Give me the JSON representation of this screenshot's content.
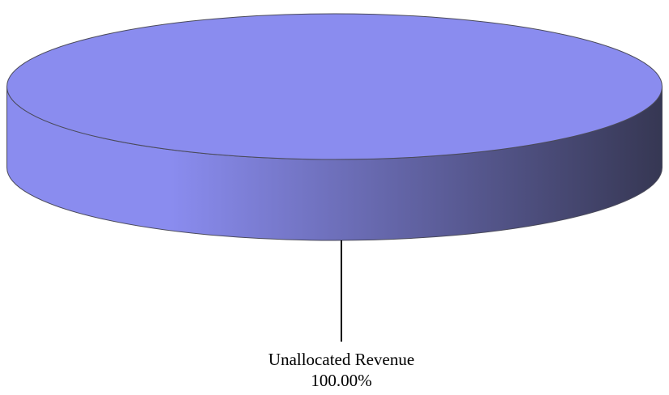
{
  "chart_data": {
    "type": "pie",
    "style": "3d",
    "title": "",
    "slices": [
      {
        "label": "Unallocated Revenue",
        "value": 100.0,
        "value_label": "100.00%",
        "color": "#8a8cef",
        "side_light": "#8a8cef",
        "side_dark": "#363753"
      }
    ],
    "edge_color": "#4a4a5a",
    "leader_color": "#000000"
  }
}
